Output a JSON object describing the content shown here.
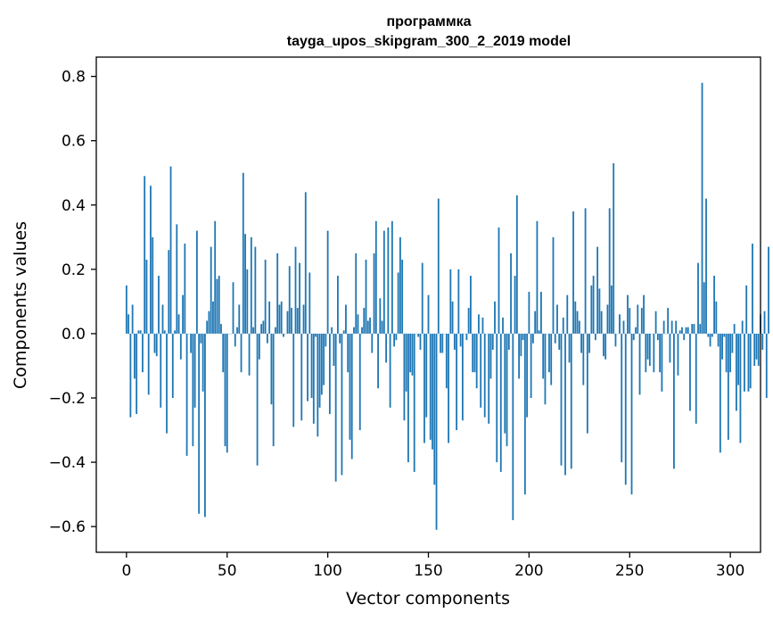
{
  "chart_data": {
    "type": "bar",
    "title_line1": "программка",
    "title_line2": "tayga_upos_skipgram_300_2_2019 model",
    "xlabel": "Vector components",
    "ylabel": "Components values",
    "xlim": [
      -15,
      315
    ],
    "ylim": [
      -0.68,
      0.86
    ],
    "xticks": [
      0,
      50,
      100,
      150,
      200,
      250,
      300
    ],
    "xtick_labels": [
      "0",
      "50",
      "100",
      "150",
      "200",
      "250",
      "300"
    ],
    "yticks": [
      -0.6,
      -0.4,
      -0.2,
      0.0,
      0.2,
      0.4,
      0.6,
      0.8
    ],
    "ytick_labels": [
      "−0.6",
      "−0.4",
      "−0.2",
      "0.0",
      "0.2",
      "0.4",
      "0.6",
      "0.8"
    ],
    "bar_color": "#1f77b4",
    "x_start": 0,
    "values": [
      0.15,
      0.06,
      -0.26,
      0.09,
      -0.14,
      -0.25,
      0.01,
      0.01,
      -0.12,
      0.49,
      0.23,
      -0.19,
      0.46,
      0.3,
      -0.06,
      -0.07,
      0.18,
      -0.23,
      0.09,
      0.01,
      -0.31,
      0.26,
      0.52,
      -0.2,
      0.01,
      0.34,
      0.06,
      -0.08,
      0.12,
      0.28,
      -0.38,
      0.0,
      -0.06,
      -0.35,
      -0.23,
      0.32,
      -0.56,
      -0.03,
      -0.18,
      -0.57,
      0.04,
      0.07,
      0.27,
      0.1,
      0.35,
      0.17,
      0.18,
      0.03,
      -0.12,
      -0.35,
      -0.37,
      0.0,
      0.0,
      0.16,
      -0.04,
      0.02,
      0.09,
      -0.12,
      0.5,
      0.31,
      0.2,
      -0.13,
      0.3,
      0.02,
      0.27,
      -0.41,
      -0.08,
      0.03,
      0.04,
      0.23,
      -0.03,
      0.1,
      -0.22,
      -0.35,
      0.02,
      0.25,
      0.09,
      0.1,
      -0.01,
      0.0,
      0.07,
      0.21,
      0.08,
      -0.29,
      0.27,
      0.08,
      0.22,
      -0.27,
      0.09,
      0.44,
      -0.21,
      0.19,
      -0.2,
      -0.28,
      -0.01,
      -0.32,
      -0.23,
      -0.19,
      -0.16,
      -0.04,
      0.32,
      -0.25,
      0.02,
      -0.1,
      -0.46,
      0.18,
      -0.03,
      -0.44,
      0.01,
      0.09,
      -0.12,
      -0.33,
      -0.39,
      0.02,
      0.25,
      0.06,
      -0.3,
      0.02,
      0.08,
      0.23,
      0.04,
      0.05,
      -0.06,
      0.25,
      0.35,
      -0.17,
      0.11,
      0.04,
      0.32,
      -0.09,
      0.33,
      -0.23,
      0.35,
      -0.04,
      -0.02,
      0.19,
      0.3,
      0.23,
      -0.27,
      -0.18,
      -0.4,
      -0.12,
      -0.13,
      -0.43,
      0.0,
      -0.01,
      -0.05,
      0.22,
      -0.34,
      -0.26,
      0.12,
      -0.33,
      -0.36,
      -0.47,
      -0.61,
      0.42,
      -0.06,
      -0.06,
      0.0,
      -0.17,
      -0.34,
      0.2,
      0.1,
      -0.05,
      -0.3,
      0.2,
      -0.04,
      -0.27,
      0.0,
      -0.02,
      0.08,
      0.18,
      -0.12,
      -0.12,
      -0.17,
      0.06,
      -0.23,
      0.05,
      -0.26,
      0.0,
      -0.28,
      -0.14,
      -0.05,
      0.1,
      -0.4,
      0.33,
      -0.43,
      0.05,
      -0.31,
      -0.35,
      -0.05,
      0.25,
      -0.58,
      0.18,
      0.43,
      -0.14,
      -0.07,
      -0.02,
      -0.5,
      -0.26,
      0.13,
      -0.2,
      -0.03,
      0.07,
      0.35,
      0.01,
      0.13,
      -0.14,
      -0.22,
      0.0,
      -0.12,
      -0.16,
      0.3,
      -0.03,
      0.09,
      -0.05,
      -0.41,
      0.05,
      -0.44,
      0.12,
      -0.09,
      -0.42,
      0.38,
      0.1,
      0.07,
      0.04,
      -0.06,
      -0.16,
      0.39,
      -0.31,
      -0.06,
      0.15,
      0.18,
      -0.02,
      0.27,
      0.14,
      0.07,
      -0.07,
      -0.08,
      0.09,
      0.39,
      0.15,
      0.53,
      -0.04,
      0.0,
      0.06,
      -0.4,
      0.04,
      -0.47,
      0.12,
      0.08,
      -0.5,
      -0.02,
      0.02,
      0.09,
      -0.19,
      0.08,
      0.12,
      -0.12,
      -0.08,
      -0.1,
      0.0,
      -0.12,
      0.07,
      -0.02,
      -0.12,
      -0.18,
      0.04,
      0.0,
      0.08,
      -0.09,
      0.04,
      -0.42,
      0.04,
      -0.13,
      0.01,
      0.02,
      -0.02,
      0.02,
      0.02,
      -0.24,
      0.03,
      0.03,
      -0.28,
      0.22,
      0.03,
      0.78,
      0.16,
      0.42,
      -0.01,
      -0.04,
      -0.01,
      0.18,
      0.1,
      -0.04,
      -0.37,
      -0.08,
      -0.01,
      -0.12,
      -0.33,
      -0.12,
      -0.06,
      0.03,
      -0.24,
      -0.16,
      -0.34,
      0.04,
      -0.18,
      0.15,
      -0.18,
      -0.17,
      0.28,
      -0.1,
      -0.08,
      -0.1,
      0.06,
      -0.05,
      0.07,
      -0.2,
      0.27
    ]
  }
}
